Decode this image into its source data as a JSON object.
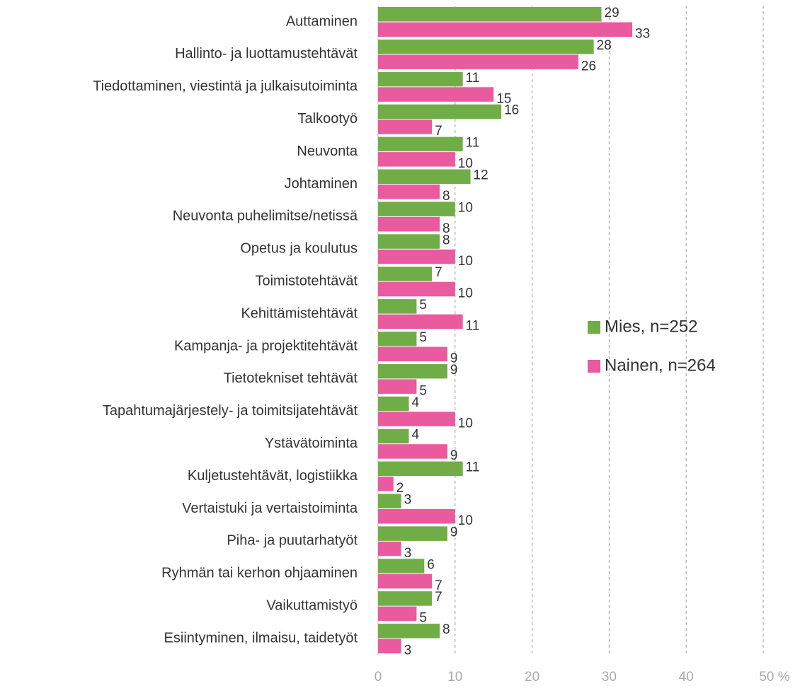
{
  "chart_data": {
    "type": "bar",
    "orientation": "horizontal",
    "categories": [
      "Auttaminen",
      "Hallinto- ja luottamustehtävät",
      "Tiedottaminen, viestintä ja julkaisutoiminta",
      "Talkootyö",
      "Neuvonta",
      "Johtaminen",
      "Neuvonta puhelimitse/netissä",
      "Opetus ja koulutus",
      "Toimistotehtävät",
      "Kehittämistehtävät",
      "Kampanja- ja projektitehtävät",
      "Tietotekniset tehtävät",
      "Tapahtumajärjestely- ja toimitsijatehtävät",
      "Ystävätoiminta",
      "Kuljetustehtävät, logistiikka",
      "Vertaistuki ja vertaistoiminta",
      "Piha- ja puutarhatyöt",
      "Ryhmän tai kerhon ohjaaminen",
      "Vaikuttamistyö",
      "Esiintyminen, ilmaisu, taidetyöt"
    ],
    "series": [
      {
        "name": "Mies, n=252",
        "color": "#70ad47",
        "values": [
          29,
          28,
          11,
          16,
          11,
          12,
          10,
          8,
          7,
          5,
          5,
          9,
          4,
          4,
          11,
          3,
          9,
          6,
          7,
          8
        ]
      },
      {
        "name": "Nainen, n=264",
        "color": "#ea5a9e",
        "values": [
          33,
          26,
          15,
          7,
          10,
          8,
          8,
          10,
          10,
          11,
          9,
          5,
          10,
          9,
          2,
          10,
          3,
          7,
          5,
          3
        ]
      }
    ],
    "xlim": [
      0,
      50
    ],
    "xticks": [
      0,
      10,
      20,
      30,
      40,
      {
        "value": 50,
        "label": "50 %"
      }
    ],
    "grid": true,
    "legend": "right"
  }
}
